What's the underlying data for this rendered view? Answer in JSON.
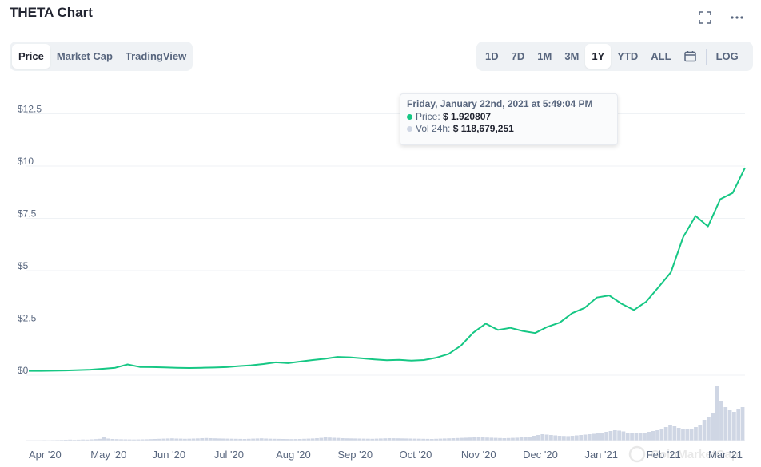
{
  "header": {
    "title": "THETA Chart",
    "fullscreen_icon": "expand-icon",
    "more_icon": "more-icon"
  },
  "tabs_left": [
    {
      "label": "Price",
      "active": true
    },
    {
      "label": "Market Cap",
      "active": false
    },
    {
      "label": "TradingView",
      "active": false
    }
  ],
  "tabs_right": [
    {
      "label": "1D",
      "active": false
    },
    {
      "label": "7D",
      "active": false
    },
    {
      "label": "1M",
      "active": false
    },
    {
      "label": "3M",
      "active": false
    },
    {
      "label": "1Y",
      "active": true
    },
    {
      "label": "YTD",
      "active": false
    },
    {
      "label": "ALL",
      "active": false
    }
  ],
  "calendar_icon": "calendar-icon",
  "log_label": "LOG",
  "tooltip": {
    "date": "Friday, January 22nd, 2021 at 5:49:04 PM",
    "price_label": "Price:",
    "price_value": "$ 1.920807",
    "vol_label": "Vol 24h:",
    "vol_value": "$ 118,679,251"
  },
  "watermark": "CoinMarketCap",
  "colors": {
    "line": "#16c784",
    "price_dot": "#16c784",
    "vol_dot": "#cfd6e4",
    "volume_bar": "#cfd6e4"
  },
  "chart_data": {
    "type": "line",
    "x_ticks": [
      "Apr '20",
      "May '20",
      "Jun '20",
      "Jul '20",
      "Aug '20",
      "Sep '20",
      "Oct '20",
      "Nov '20",
      "Dec '20",
      "Jan '21",
      "Feb '21",
      "Mar '21"
    ],
    "y_ticks": [
      "$0",
      "$2.5",
      "$5",
      "$7.5",
      "$10",
      "$12.5"
    ],
    "ylim": [
      0,
      12.5
    ],
    "grid": true,
    "series": [
      {
        "values": [
          0.09,
          0.09,
          0.1,
          0.11,
          0.13,
          0.15,
          0.19,
          0.24,
          0.4,
          0.28,
          0.27,
          0.26,
          0.24,
          0.23,
          0.24,
          0.25,
          0.27,
          0.32,
          0.36,
          0.42,
          0.5,
          0.46,
          0.54,
          0.61,
          0.67,
          0.76,
          0.74,
          0.69,
          0.64,
          0.6,
          0.62,
          0.58,
          0.61,
          0.72,
          0.9,
          1.3,
          1.92,
          2.35,
          2.05,
          2.15,
          2.0,
          1.9,
          2.2,
          2.4,
          2.85,
          3.1,
          3.6,
          3.7,
          3.3,
          3.0,
          3.4,
          4.1,
          4.8,
          6.5,
          7.5,
          7.0,
          8.3,
          8.6,
          9.8
        ]
      }
    ],
    "volume": [
      5,
      4,
      5,
      4,
      6,
      5,
      6,
      7,
      8,
      10,
      12,
      9,
      11,
      13,
      12,
      15,
      18,
      22,
      40,
      25,
      20,
      18,
      16,
      15,
      14,
      13,
      14,
      15,
      16,
      18,
      20,
      22,
      24,
      26,
      28,
      25,
      24,
      22,
      23,
      25,
      27,
      30,
      32,
      30,
      28,
      26,
      25,
      24,
      23,
      22,
      21,
      20,
      22,
      24,
      26,
      28,
      25,
      23,
      22,
      21,
      20,
      19,
      18,
      19,
      20,
      22,
      24,
      26,
      30,
      34,
      40,
      38,
      35,
      33,
      30,
      28,
      27,
      26,
      25,
      24,
      23,
      22,
      24,
      26,
      28,
      30,
      29,
      28,
      27,
      26,
      25,
      24,
      23,
      22,
      21,
      20,
      22,
      24,
      26,
      28,
      30,
      32,
      34,
      36,
      38,
      40,
      42,
      40,
      38,
      36,
      34,
      32,
      30,
      32,
      34,
      36,
      40,
      45,
      50,
      60,
      70,
      80,
      75,
      70,
      65,
      60,
      58,
      56,
      60,
      65,
      70,
      75,
      80,
      85,
      90,
      100,
      110,
      120,
      130,
      125,
      115,
      100,
      95,
      90,
      95,
      100,
      110,
      120,
      130,
      150,
      170,
      200,
      180,
      160,
      150,
      140,
      150,
      170,
      200,
      260,
      300,
      350,
      680,
      500,
      420,
      380,
      360,
      400,
      420
    ]
  }
}
